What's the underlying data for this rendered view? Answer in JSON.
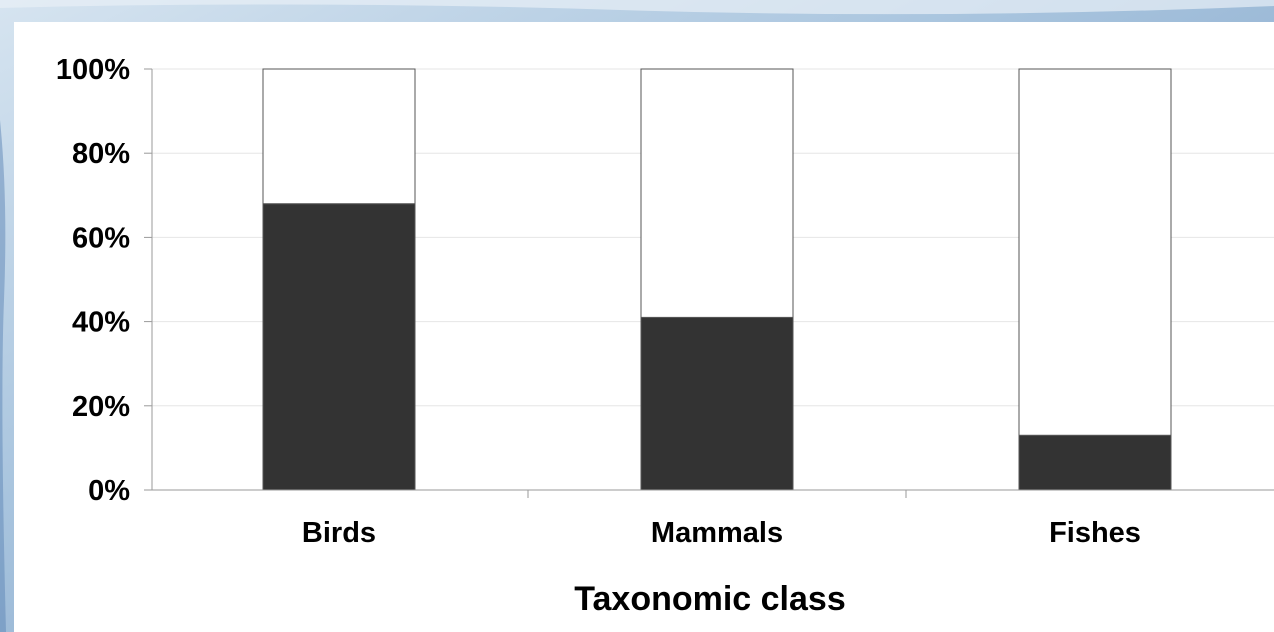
{
  "chart_data": {
    "type": "bar",
    "stacked": true,
    "categories": [
      "Birds",
      "Mammals",
      "Fishes"
    ],
    "series": [
      {
        "values": [
          68,
          41,
          13
        ],
        "color": "#333333"
      },
      {
        "values": [
          32,
          59,
          87
        ],
        "color": "#ffffff"
      }
    ],
    "xlabel": "Taxonomic class",
    "ylabel": "",
    "ylim": [
      0,
      100
    ],
    "yticks": [
      0,
      20,
      40,
      60,
      80,
      100
    ],
    "ytick_labels": [
      "0%",
      "20%",
      "40%",
      "60%",
      "80%",
      "100%"
    ],
    "grid": true,
    "legend": "none"
  },
  "colors": {
    "grid": "#e6e6e6",
    "axis": "#9a9a9a",
    "bar_border": "#555555"
  }
}
